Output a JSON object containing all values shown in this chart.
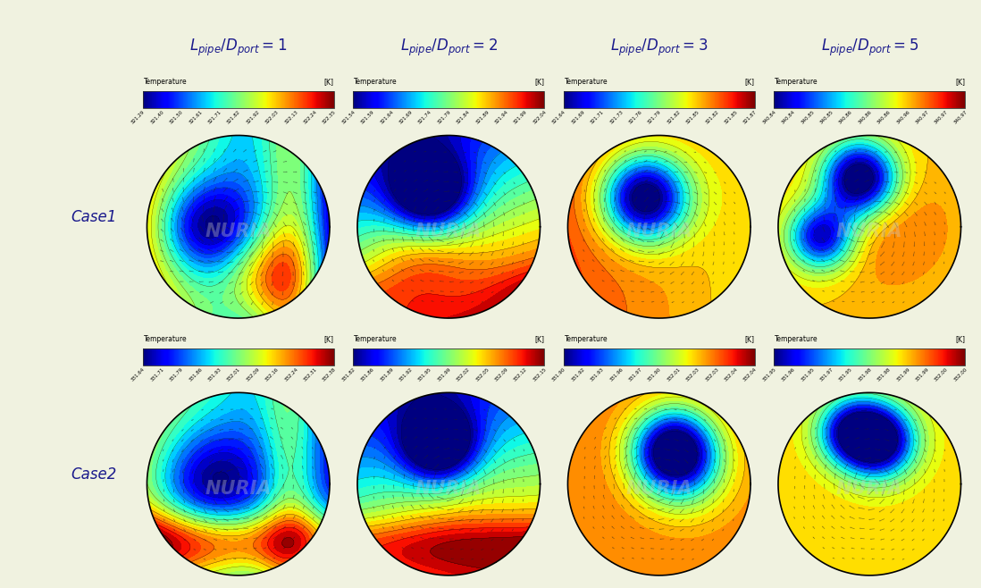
{
  "background_color": "#f0f2e0",
  "title_color": "#1a1a8c",
  "col_titles": [
    "$L_{pipe}/D_{port}=1$",
    "$L_{pipe}/D_{port}=2$",
    "$L_{pipe}/D_{port}=3$",
    "$L_{pipe}/D_{port}=5$"
  ],
  "row_labels": [
    "Case1",
    "Case2"
  ],
  "colorbar_label": "Temperature",
  "colorbar_unit": "[K]",
  "case1_tick_labels": [
    [
      "321.29",
      "321.40",
      "321.50",
      "321.61",
      "321.71",
      "321.82",
      "321.92",
      "322.03",
      "322.13",
      "322.24",
      "322.35"
    ],
    [
      "321.54",
      "321.59",
      "321.64",
      "321.69",
      "321.74",
      "321.79",
      "321.84",
      "321.89",
      "321.94",
      "321.99",
      "322.04"
    ],
    [
      "321.64",
      "321.69",
      "321.71",
      "321.73",
      "321.76",
      "321.79",
      "321.82",
      "321.85",
      "321.82",
      "321.85",
      "321.87"
    ],
    [
      "340.84",
      "340.84",
      "340.85",
      "340.85",
      "340.86",
      "340.86",
      "340.86",
      "340.96",
      "340.97",
      "340.97",
      "340.97"
    ]
  ],
  "case2_tick_labels": [
    [
      "331.64",
      "331.71",
      "331.79",
      "331.86",
      "331.93",
      "332.01",
      "332.09",
      "332.16",
      "332.24",
      "332.31",
      "332.38"
    ],
    [
      "331.82",
      "331.86",
      "331.89",
      "331.92",
      "331.95",
      "331.99",
      "332.02",
      "332.05",
      "332.09",
      "332.12",
      "332.15"
    ],
    [
      "331.90",
      "331.92",
      "331.93",
      "331.96",
      "331.97",
      "331.90",
      "332.01",
      "332.03",
      "332.03",
      "332.04",
      "332.04"
    ],
    [
      "331.95",
      "331.96",
      "331.95",
      "331.97",
      "331.95",
      "331.98",
      "331.98",
      "331.99",
      "331.99",
      "332.00",
      "332.00"
    ]
  ],
  "colormap": "jet",
  "watermark": "NURIA"
}
